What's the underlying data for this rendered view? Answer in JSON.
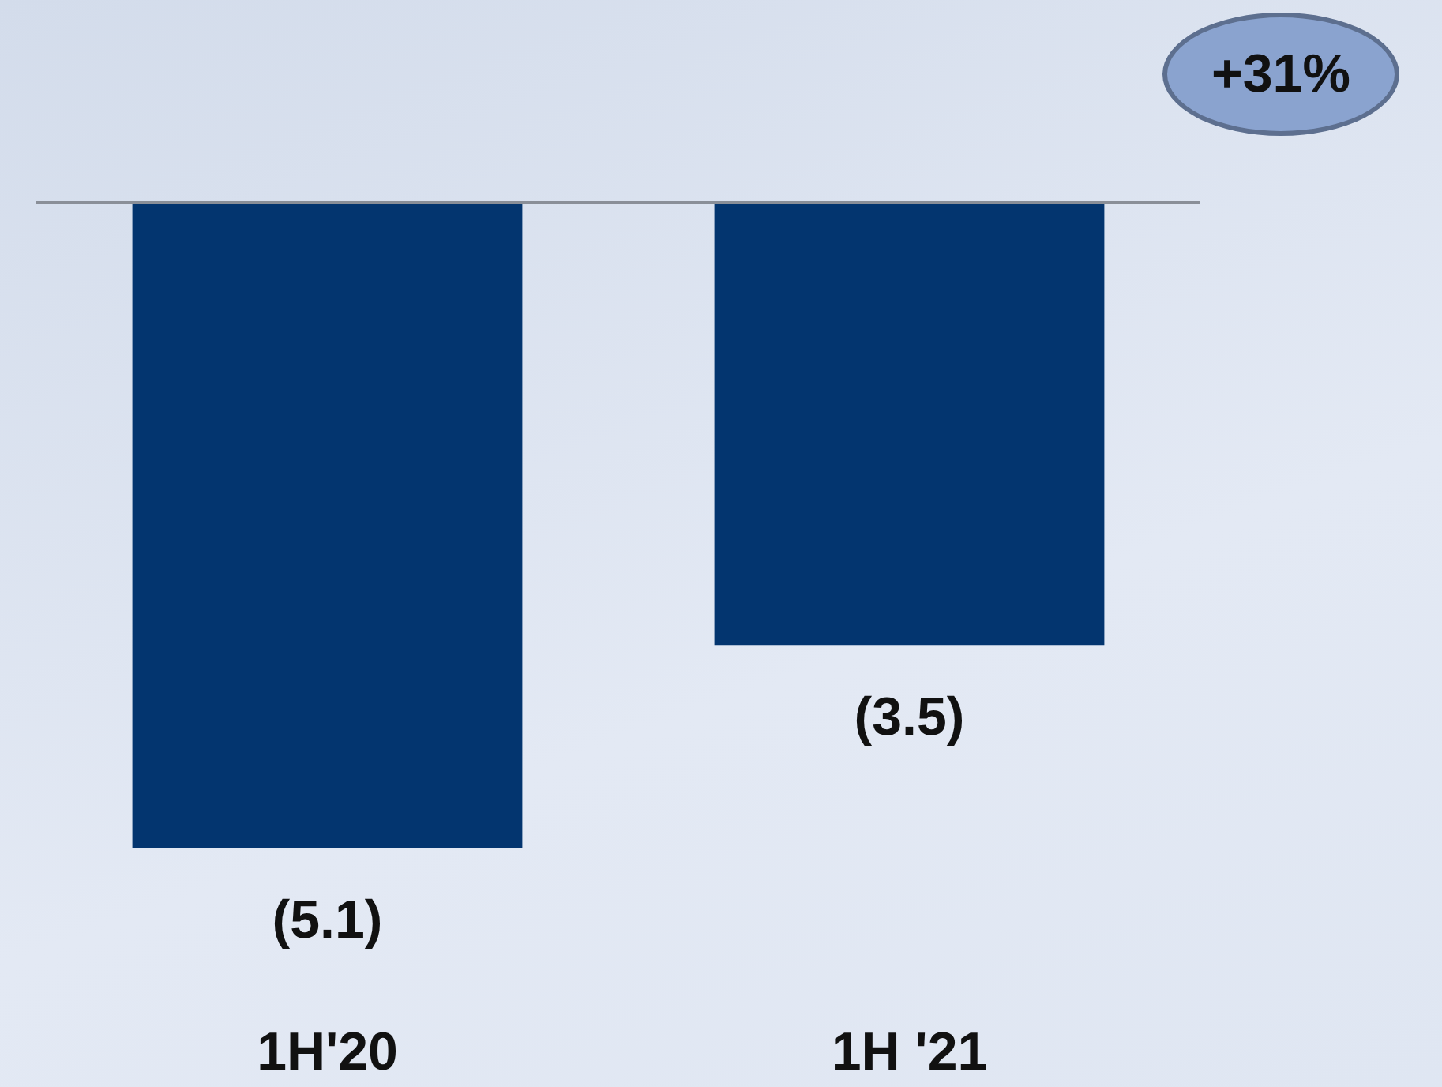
{
  "chart_data": {
    "type": "bar",
    "categories": [
      "1H'20",
      "1H '21"
    ],
    "values": [
      -5.1,
      -3.5
    ],
    "value_labels": [
      "(5.1)",
      "(3.5)"
    ],
    "color": "#03356f",
    "annotations": [
      "+31%"
    ]
  }
}
